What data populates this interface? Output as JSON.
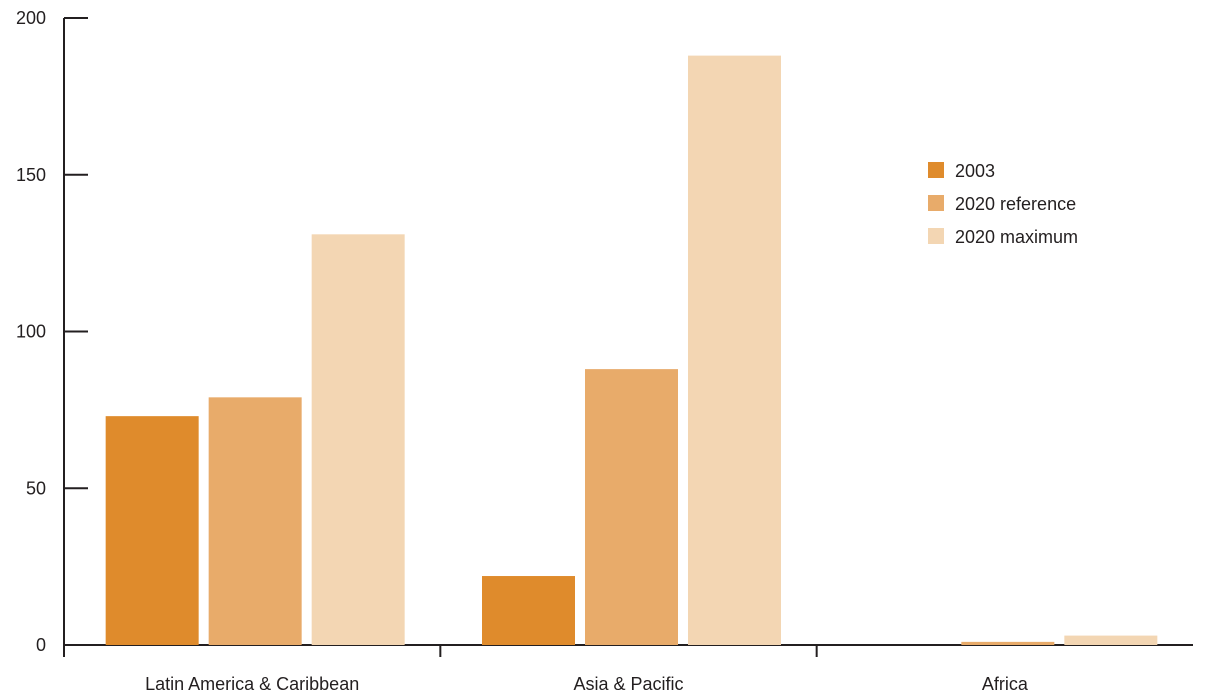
{
  "chart_data": {
    "type": "bar",
    "title": "",
    "xlabel": "",
    "ylabel": "",
    "categories": [
      "Latin America & Caribbean",
      "Asia & Pacific",
      "Africa"
    ],
    "series": [
      {
        "name": "2003",
        "values": [
          73,
          22,
          0
        ],
        "color": "#df8b2c"
      },
      {
        "name": "2020 reference",
        "values": [
          79,
          88,
          1
        ],
        "color": "#e8ab6a"
      },
      {
        "name": "2020 maximum",
        "values": [
          131,
          188,
          3
        ],
        "color": "#f3d6b3"
      }
    ],
    "ylim": [
      0,
      200
    ],
    "yticks": [
      0,
      50,
      100,
      150,
      200
    ],
    "grid": false,
    "legend_position": "right"
  }
}
